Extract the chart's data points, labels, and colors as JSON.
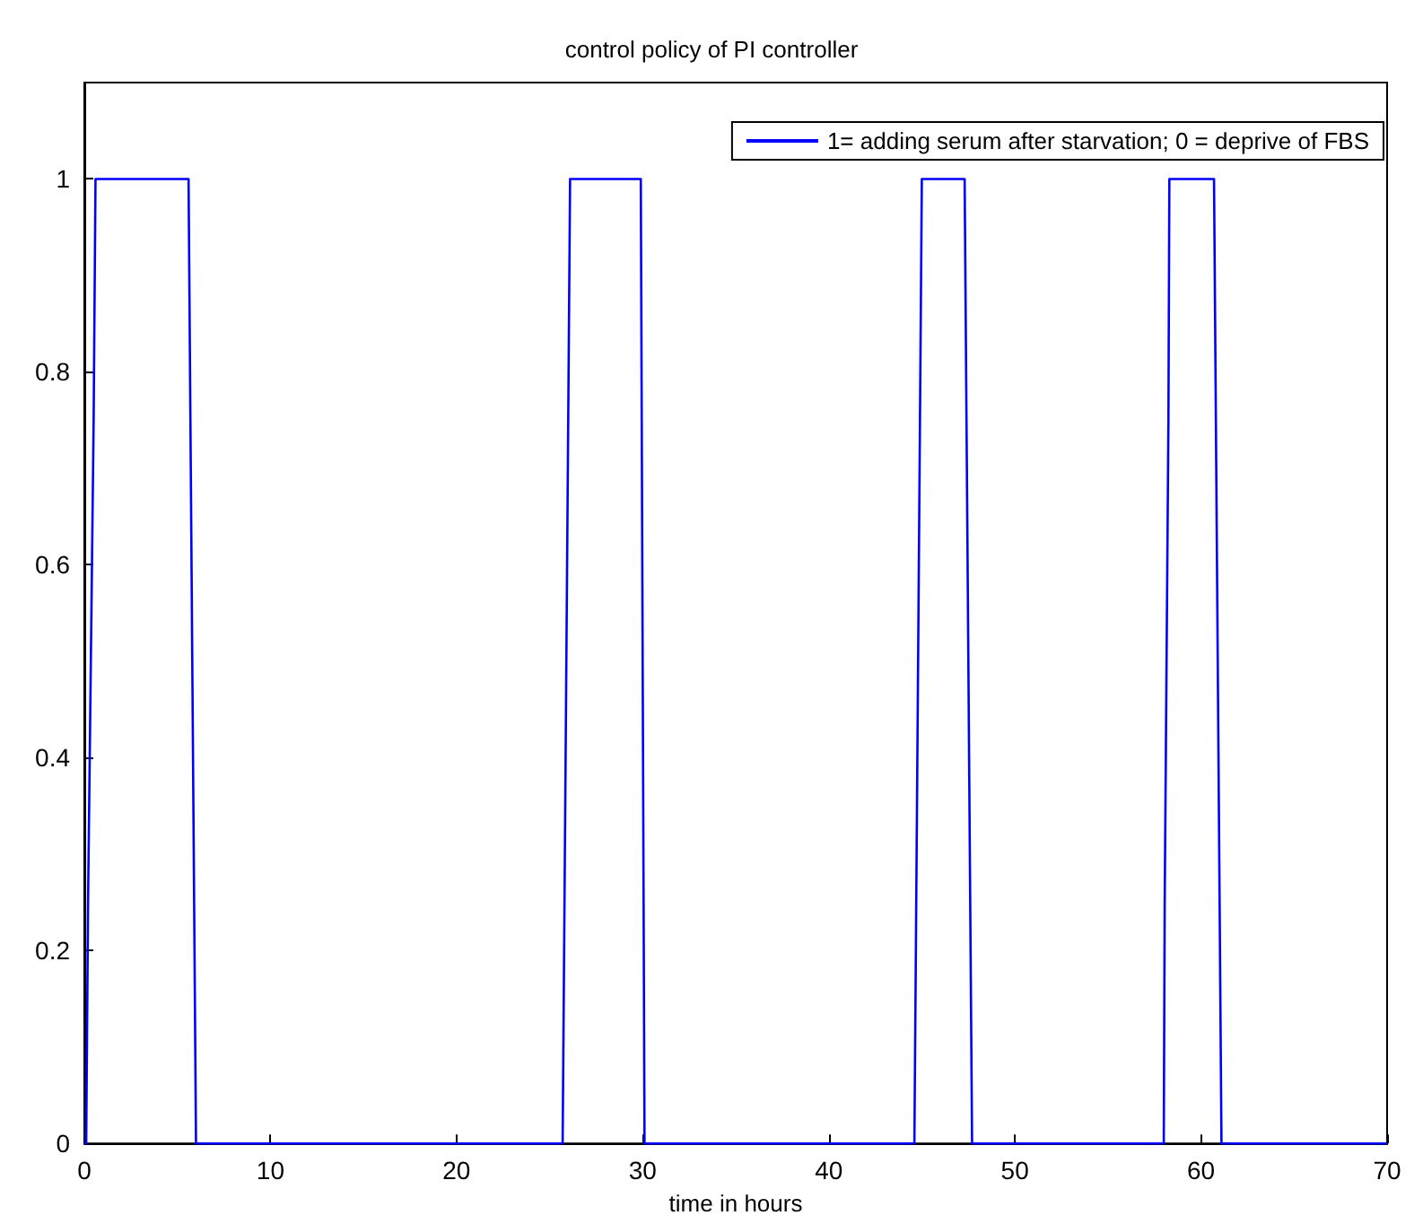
{
  "chart_data": {
    "type": "line",
    "title": "control policy of PI controller",
    "xlabel": "time in hours",
    "x": [
      0,
      0.1,
      0.2,
      0.5,
      0.6,
      5.6,
      5.7,
      5.9,
      6.0,
      25.7,
      25.8,
      26.0,
      26.1,
      29.9,
      29.95,
      30.05,
      30.1,
      44.6,
      44.7,
      44.9,
      45.0,
      47.3,
      47.4,
      47.6,
      47.7,
      58.0,
      58.05,
      58.25,
      58.3,
      60.7,
      60.8,
      61.0,
      61.1,
      70
    ],
    "series": [
      {
        "name": "1= adding serum after starvation; 0 = deprive of FBS",
        "color": "#0000ff",
        "values": [
          0,
          0,
          0.25,
          0.75,
          1,
          1,
          0.75,
          0.25,
          0,
          0,
          0.25,
          0.75,
          1,
          1,
          0.75,
          0.25,
          0,
          0,
          0.25,
          0.75,
          1,
          1,
          0.75,
          0.25,
          0,
          0,
          0.25,
          0.75,
          1,
          1,
          0.75,
          0.25,
          0,
          0
        ]
      }
    ],
    "xlim": [
      0,
      70
    ],
    "xticks": [
      0,
      10,
      20,
      30,
      40,
      50,
      60,
      70
    ],
    "ylim": [
      0,
      1.1
    ],
    "yticks": [
      0,
      0.2,
      0.4,
      0.6,
      0.8,
      1
    ],
    "grid": false,
    "legend": "top right",
    "marker": "none",
    "line_style": "solid"
  }
}
